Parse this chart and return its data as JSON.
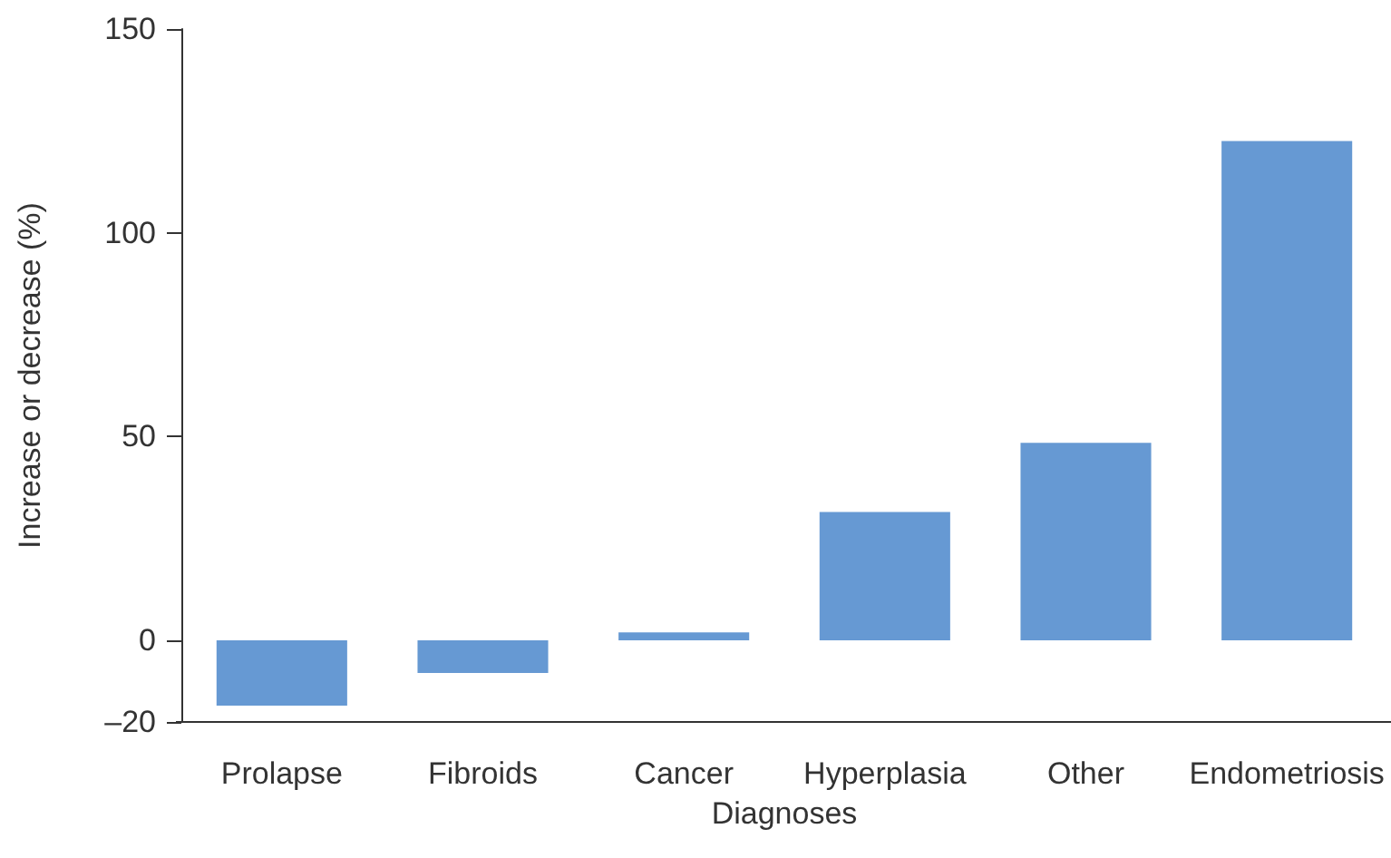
{
  "chart_data": {
    "type": "bar",
    "xlabel": "Diagnoses",
    "ylabel": "Increase or decrease (%)",
    "categories": [
      "Prolapse",
      "Fibroids",
      "Cancer",
      "Hyperplasia",
      "Other",
      "Endometriosis"
    ],
    "values": [
      -16,
      -8,
      2,
      31.5,
      48.5,
      122.5
    ],
    "color": "#6699d3",
    "ylim": [
      -20,
      150
    ],
    "yticks": [
      {
        "value": -20,
        "label": "–20"
      },
      0,
      50,
      100,
      150
    ],
    "grid": false
  }
}
